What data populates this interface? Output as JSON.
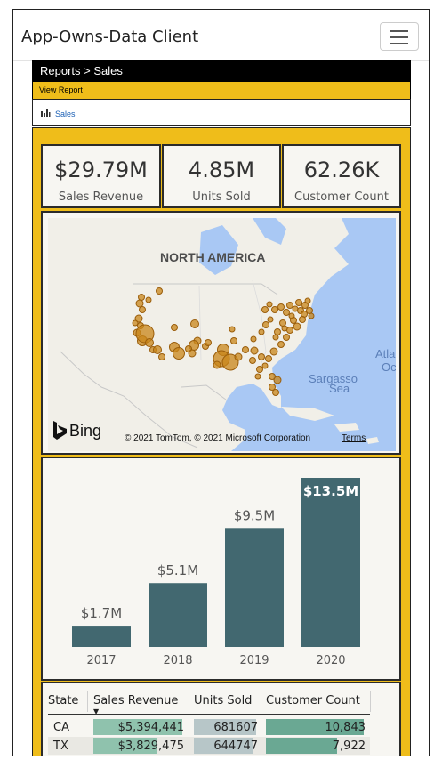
{
  "navbar": {
    "brand": "App-Owns-Data Client"
  },
  "breadcrumb": "Reports > Sales",
  "subbar": "View Report",
  "report_link": "Sales",
  "kpis": [
    {
      "value": "$29.79M",
      "caption": "Sales Revenue"
    },
    {
      "value": "4.85M",
      "caption": "Units Sold"
    },
    {
      "value": "62.26K",
      "caption": "Customer Count"
    }
  ],
  "map": {
    "region_label": "NORTH AMERICA",
    "ocean_label_1": "Sargasso",
    "ocean_label_2": "Sea",
    "atlantic_1": "Atla",
    "atlantic_2": "Oc",
    "bing": "Bing",
    "copyright": "© 2021 TomTom, © 2021 Microsoft Corporation",
    "terms": "Terms"
  },
  "chart_data": {
    "type": "bar",
    "categories": [
      "2017",
      "2018",
      "2019",
      "2020"
    ],
    "values": [
      1.7,
      5.1,
      9.5,
      13.5
    ],
    "labels": [
      "$1.7M",
      "$5.1M",
      "$9.5M",
      "$13.5M"
    ],
    "ylim": [
      0,
      13.5
    ],
    "bar_color": "#426870",
    "title": "",
    "xlabel": "",
    "ylabel": ""
  },
  "table": {
    "headers": [
      "State",
      "Sales Revenue",
      "Units Sold",
      "Customer Count"
    ],
    "rows": [
      [
        "CA",
        "$5,394,441",
        "681607",
        "10,843"
      ],
      [
        "TX",
        "$3,829,475",
        "644747",
        "7,922"
      ]
    ],
    "bar_fractions": {
      "revenue": [
        1.0,
        0.71
      ],
      "units": [
        1.0,
        0.95
      ],
      "customers": [
        1.0,
        0.73
      ]
    }
  },
  "colors": {
    "yellow": "#efbd1a",
    "map_water": "#a9c8f4",
    "map_land": "#f1efe8",
    "bubble": "#c8861a",
    "revenue_bar": "#8fc2ad",
    "units_bar": "#b7c6c8",
    "customers_bar": "#6aa893"
  }
}
